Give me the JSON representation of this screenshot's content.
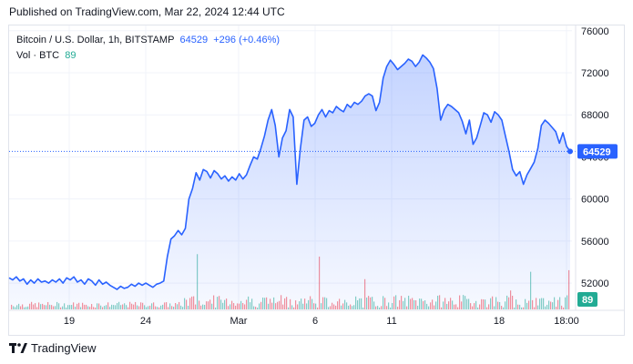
{
  "header": {
    "published_text": "Published on TradingView.com, Mar 22, 2024 12:44 UTC"
  },
  "legend": {
    "symbol_text": "Bitcoin / U.S. Dollar, 1h, BITSTAMP",
    "price": "64529",
    "change": "+296 (+0.46%)",
    "volume_label": "Vol · BTC",
    "volume_value": "89"
  },
  "footer": {
    "brand": "TradingView"
  },
  "colors": {
    "line": "#2962ff",
    "area_top": "rgba(41,98,255,0.28)",
    "area_bottom": "rgba(41,98,255,0.04)",
    "vol_up": "rgba(34,171,148,0.55)",
    "vol_down": "rgba(242,54,69,0.55)",
    "price_tag": "#2962ff",
    "vol_tag": "#22ab94",
    "grid": "#f0f3fa",
    "axis_text": "#131722"
  },
  "chart_data": {
    "type": "area",
    "title": "Bitcoin / U.S. Dollar, 1h, BITSTAMP",
    "ylabel": "",
    "xlabel": "",
    "ylim": [
      49500,
      76500
    ],
    "y_ticks": [
      52000,
      56000,
      60000,
      64000,
      68000,
      72000,
      76000
    ],
    "x_ticks": [
      "19",
      "24",
      "Mar",
      "6",
      "11",
      "18",
      "18:00"
    ],
    "grid": true,
    "last_price": "64529",
    "last_volume": "89",
    "series": [
      {
        "values": [
          52500,
          52300,
          52600,
          52200,
          52400,
          51900,
          52300,
          52000,
          52400,
          52100,
          52200,
          52000,
          52300,
          52100,
          52400,
          52000,
          52500,
          52300,
          52600,
          52100,
          52300,
          51900,
          52400,
          52200,
          51800,
          52300,
          51900,
          52100,
          51800,
          51600,
          51400,
          51700,
          51500,
          51600,
          51900,
          51700,
          52000,
          51800,
          52000,
          51800,
          51600,
          51900,
          52000,
          52200,
          54500,
          56200,
          56500,
          57000,
          56600,
          57200,
          60000,
          61000,
          62500,
          61800,
          62800,
          62600,
          62000,
          62700,
          62400,
          61900,
          62200,
          61700,
          62100,
          61800,
          62400,
          61900,
          62300,
          63200,
          64000,
          63800,
          64800,
          66000,
          67500,
          68500,
          67000,
          64000,
          65800,
          66500,
          68500,
          67800,
          61400,
          64800,
          67500,
          67800,
          66900,
          67200,
          68000,
          68500,
          67800,
          68400,
          68200,
          68800,
          68500,
          68300,
          69000,
          68700,
          69200,
          69000,
          69300,
          69800,
          70000,
          69800,
          68400,
          69200,
          71500,
          72600,
          73200,
          72800,
          72300,
          72600,
          72900,
          73300,
          73100,
          72600,
          73000,
          73700,
          73400,
          73000,
          72400,
          70500,
          67500,
          68500,
          69000,
          68800,
          68500,
          68200,
          67400,
          66200,
          67500,
          65200,
          65800,
          67000,
          68200,
          68000,
          67300,
          68300,
          68000,
          67500,
          66000,
          64500,
          62800,
          62200,
          62600,
          61400,
          62300,
          62900,
          63500,
          64800,
          67000,
          67500,
          67200,
          66800,
          66400,
          65300,
          66300,
          65000,
          64529
        ]
      }
    ]
  }
}
